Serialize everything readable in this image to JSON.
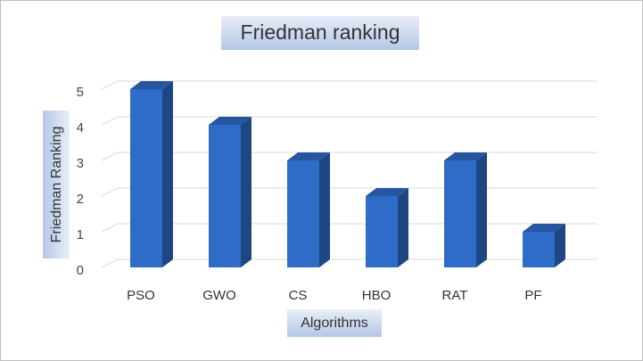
{
  "chart_data": {
    "type": "bar3d",
    "title": "Friedman ranking",
    "y_label": "Friedman Ranking",
    "x_label": "Algorithms",
    "categories": [
      "PSO",
      "GWO",
      "CS",
      "HBO",
      "RAT",
      "PF"
    ],
    "values": [
      5,
      4,
      3,
      2,
      3,
      1
    ],
    "color": "#2e6cc7",
    "ylim": [
      0,
      5
    ],
    "yticks": [
      0,
      1,
      2,
      3,
      4,
      5
    ],
    "grid": true
  }
}
